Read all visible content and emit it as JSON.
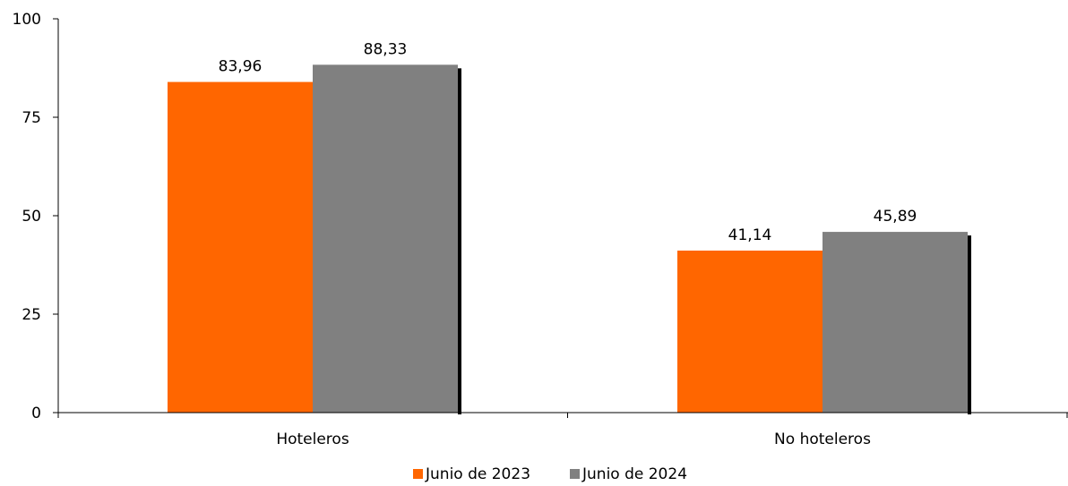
{
  "chart_data": {
    "type": "bar",
    "categories": [
      "Hoteleros",
      "No hoteleros"
    ],
    "series": [
      {
        "name": "Junio de 2023",
        "values": [
          83.96,
          41.14
        ],
        "labels": [
          "83,96",
          "41,14"
        ],
        "color": "#ff6600"
      },
      {
        "name": "Junio de 2024",
        "values": [
          88.33,
          45.89
        ],
        "labels": [
          "88,33",
          "45,89"
        ],
        "color": "#808080"
      }
    ],
    "ylim": [
      0,
      100
    ],
    "yticks": [
      0,
      25,
      50,
      75,
      100
    ],
    "ytick_labels": [
      "0",
      "25",
      "50",
      "75",
      "100"
    ],
    "title": "",
    "xlabel": "",
    "ylabel": "",
    "grid": false,
    "legend_position": "bottom-center"
  }
}
